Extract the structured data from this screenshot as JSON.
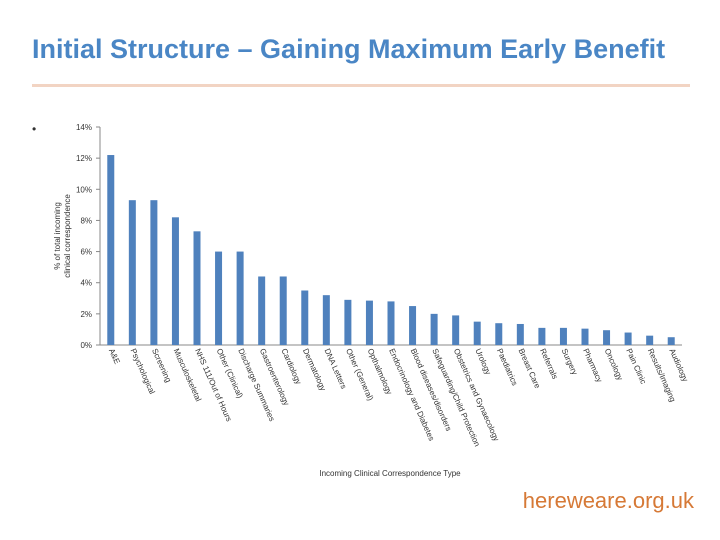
{
  "slide": {
    "title": "Initial Structure – Gaining Maximum Early Benefit",
    "bullet": "•",
    "footer": "hereweare.org.uk",
    "colors": {
      "title": "#4a86c5",
      "bar": "#4f81bd",
      "footer": "#d67936",
      "rule": "#f2d4c3"
    }
  },
  "chart_data": {
    "type": "bar",
    "title": "",
    "xlabel": "Incoming Clinical Correspondence Type",
    "ylabel": "% of total incoming clinical correspondence",
    "ylim": [
      0,
      14
    ],
    "yticks": [
      0,
      2,
      4,
      6,
      8,
      10,
      12,
      14
    ],
    "ytick_labels": [
      "0%",
      "2%",
      "4%",
      "6%",
      "8%",
      "10%",
      "12%",
      "14%"
    ],
    "grid": false,
    "legend": "none",
    "categories": [
      "A&E",
      "Psychological",
      "Screening",
      "Musculoskeletal",
      "NHS 111/Out of Hours",
      "Other (Clinical)",
      "Discharge Summaries",
      "Gastroenterology",
      "Cardiology",
      "Dermatology",
      "DNA Letters",
      "Other (General)",
      "Opthalmology",
      "Endocrinology and Diabetes",
      "Blood diseases/disorders",
      "Safeguarding/Child Protection",
      "Obstetrics and Gynaecology",
      "Urology",
      "Paediatrics",
      "Breast Care",
      "Referrals",
      "Surgery",
      "Pharmacy",
      "Oncology",
      "Pain Clinic",
      "Results/Imaging",
      "Audiology"
    ],
    "values": [
      12.2,
      9.3,
      9.3,
      8.2,
      7.3,
      6.0,
      6.0,
      4.4,
      4.4,
      3.5,
      3.2,
      2.9,
      2.85,
      2.8,
      2.5,
      2.0,
      1.9,
      1.5,
      1.4,
      1.35,
      1.1,
      1.1,
      1.05,
      0.95,
      0.8,
      0.6,
      0.5
    ]
  }
}
